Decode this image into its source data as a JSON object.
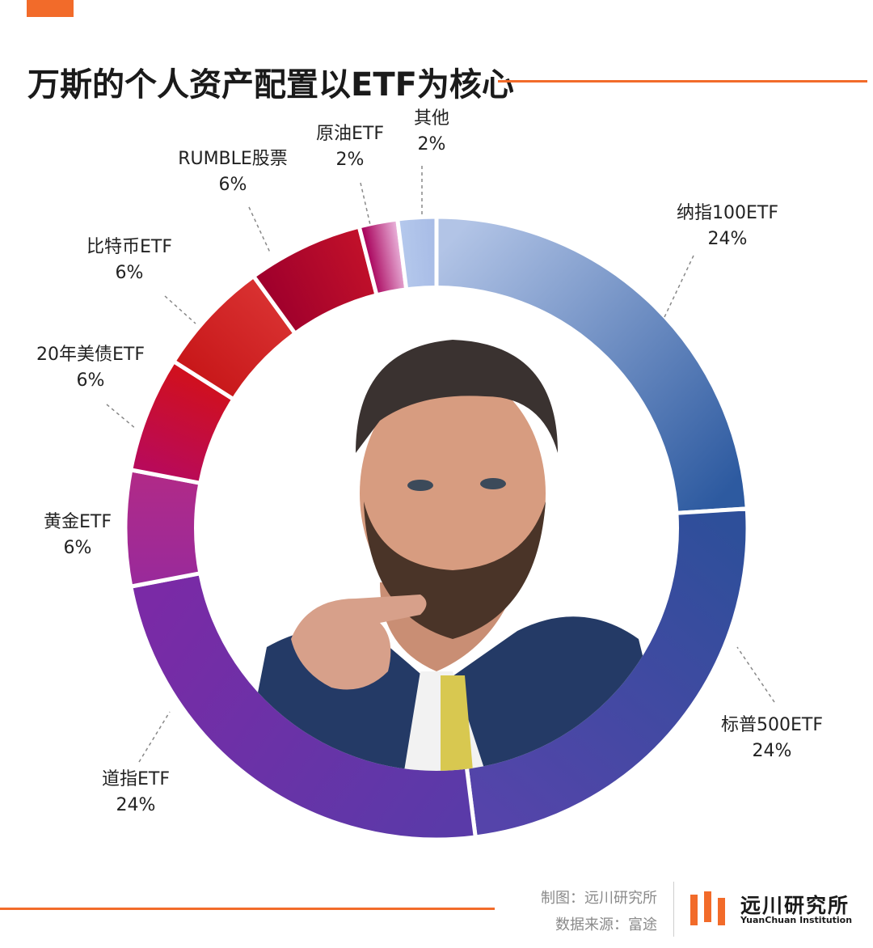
{
  "title": "万斯的个人资产配置以ETF为核心",
  "credits": {
    "made_by": "制图：远川研究所",
    "source": "数据来源：富途"
  },
  "brand": {
    "name": "远川研究所",
    "english": "YuanChuan Institution"
  },
  "center_image": "portrait-photo",
  "colors": {
    "accent": "#f26b2a"
  },
  "chart_data": {
    "type": "pie",
    "donut": true,
    "title": "万斯的个人资产配置以ETF为核心",
    "categories": [
      "纳指100ETF",
      "标普500ETF",
      "道指ETF",
      "黄金ETF",
      "20年美债ETF",
      "比特币ETF",
      "RUMBLE股票",
      "原油ETF",
      "其他"
    ],
    "values": [
      24,
      24,
      24,
      6,
      6,
      6,
      6,
      2,
      2
    ],
    "value_labels": [
      "24%",
      "24%",
      "24%",
      "6%",
      "6%",
      "6%",
      "6%",
      "2%",
      "2%"
    ],
    "unit": "%",
    "slice_colors": [
      [
        "#b2c4e6",
        "#2d5aa0"
      ],
      [
        "#2e4f9a",
        "#5544aa"
      ],
      [
        "#5a3aa8",
        "#7a2aa6"
      ],
      [
        "#9a2a9a",
        "#b02a88"
      ],
      [
        "#b80a5a",
        "#d0101e"
      ],
      [
        "#c8181a",
        "#d83030"
      ],
      [
        "#a0002c",
        "#c0102a"
      ],
      [
        "#a8005a",
        "#e8b0d8"
      ],
      [
        "#b4c8ec",
        "#a8bce6"
      ]
    ]
  }
}
